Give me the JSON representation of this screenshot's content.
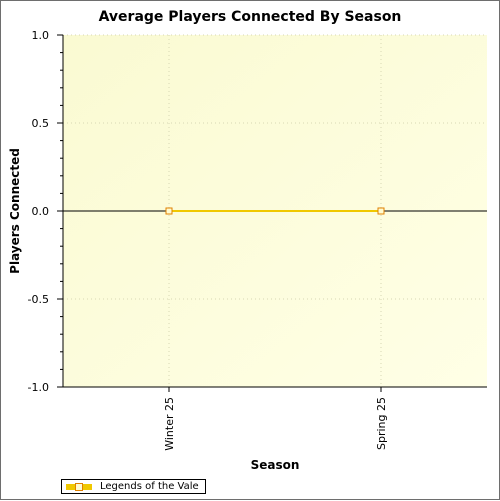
{
  "chart_data": {
    "type": "line",
    "title": "Average Players Connected By Season",
    "xlabel": "Season",
    "ylabel": "Players Connected",
    "categories": [
      "Winter 25",
      "Spring 25"
    ],
    "series": [
      {
        "name": "Legends of the Vale",
        "values": [
          0,
          0
        ]
      }
    ],
    "ylim": [
      -1.0,
      1.0
    ],
    "yticks": [
      "1.0",
      "0.5",
      "0.0",
      "-0.5",
      "-1.0"
    ],
    "grid": true,
    "legend_position": "bottom-left",
    "colors": {
      "series_line": "#f0c800",
      "marker_border": "#e08000",
      "marker_fill": "#fffbd0",
      "plot_bg_start": "#fafad2",
      "plot_bg_end": "#ffffe6",
      "grid": "#d7d7b4"
    }
  }
}
